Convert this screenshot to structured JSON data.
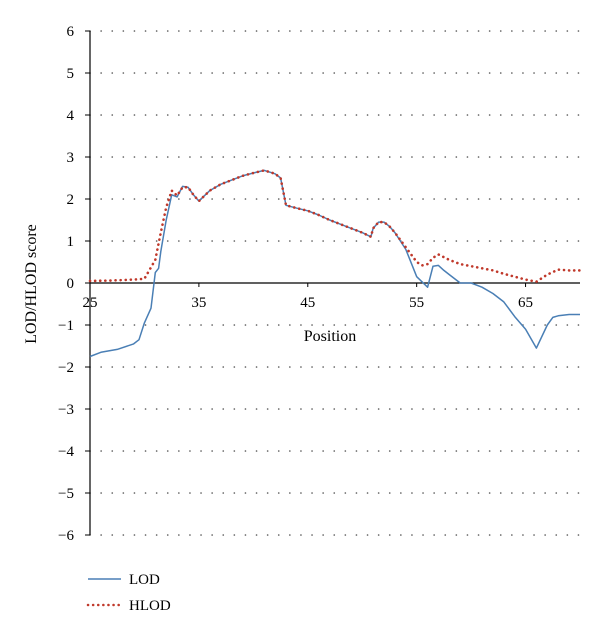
{
  "chart_data": {
    "type": "line",
    "title": "",
    "xlabel": "Position",
    "ylabel": "LOD/HLOD score",
    "xlim": [
      25,
      70
    ],
    "ylim": [
      -6,
      6
    ],
    "x_ticks": [
      "25",
      "35",
      "45",
      "55",
      "65"
    ],
    "y_ticks": [
      "6",
      "5",
      "4",
      "3",
      "2",
      "1",
      "0",
      "−1",
      "−2",
      "−3",
      "−4",
      "−5",
      "−6"
    ],
    "grid": "horizontal dotted",
    "legend_position": "bottom-left",
    "series": [
      {
        "name": "LOD",
        "color": "#4a7fb5",
        "style": "solid",
        "x": [
          25,
          26,
          27.5,
          29,
          29.5,
          30,
          30.6,
          31,
          31.3,
          31.5,
          32,
          32.5,
          33,
          33.5,
          34,
          34.5,
          35,
          36,
          37,
          38,
          39,
          40,
          41,
          42,
          42.5,
          43,
          44,
          45,
          46,
          47,
          48,
          49,
          50,
          50.8,
          51,
          51.5,
          52,
          52.5,
          53,
          54,
          55,
          56,
          56.5,
          57,
          57.5,
          58,
          59,
          60,
          61,
          62,
          63,
          64,
          65,
          66,
          67,
          67.5,
          68,
          69,
          70
        ],
        "y": [
          -1.75,
          -1.65,
          -1.58,
          -1.45,
          -1.35,
          -0.95,
          -0.6,
          0.25,
          0.35,
          0.75,
          1.5,
          2.1,
          2.05,
          2.3,
          2.28,
          2.1,
          1.95,
          2.2,
          2.35,
          2.45,
          2.55,
          2.62,
          2.68,
          2.6,
          2.5,
          1.85,
          1.78,
          1.72,
          1.62,
          1.5,
          1.4,
          1.3,
          1.2,
          1.1,
          1.3,
          1.45,
          1.45,
          1.35,
          1.2,
          0.8,
          0.15,
          -0.1,
          0.4,
          0.42,
          0.3,
          0.2,
          0.0,
          0.0,
          -0.1,
          -0.25,
          -0.45,
          -0.8,
          -1.1,
          -1.55,
          -1.0,
          -0.82,
          -0.78,
          -0.75,
          -0.75
        ]
      },
      {
        "name": "HLOD",
        "color": "#c0392b",
        "style": "dotted",
        "x": [
          25,
          27,
          29,
          30,
          31,
          31.5,
          32,
          32.5,
          33,
          33.5,
          34,
          34.5,
          35,
          36,
          37,
          38,
          39,
          40,
          41,
          42,
          42.5,
          43,
          44,
          45,
          46,
          47,
          48,
          49,
          50,
          50.8,
          51,
          51.5,
          52,
          52.5,
          53,
          54,
          55,
          55.5,
          56,
          56.5,
          57,
          58,
          59,
          60,
          61,
          62,
          63,
          64,
          65,
          66,
          67,
          68,
          69,
          70
        ],
        "y": [
          0.05,
          0.06,
          0.08,
          0.1,
          0.55,
          1.2,
          1.8,
          2.2,
          2.08,
          2.28,
          2.28,
          2.1,
          1.95,
          2.2,
          2.35,
          2.45,
          2.55,
          2.62,
          2.68,
          2.6,
          2.5,
          1.85,
          1.78,
          1.72,
          1.62,
          1.5,
          1.4,
          1.3,
          1.2,
          1.1,
          1.3,
          1.45,
          1.45,
          1.35,
          1.2,
          0.85,
          0.5,
          0.42,
          0.45,
          0.6,
          0.68,
          0.55,
          0.45,
          0.4,
          0.35,
          0.3,
          0.22,
          0.15,
          0.08,
          0.03,
          0.2,
          0.32,
          0.3,
          0.3
        ]
      }
    ]
  }
}
